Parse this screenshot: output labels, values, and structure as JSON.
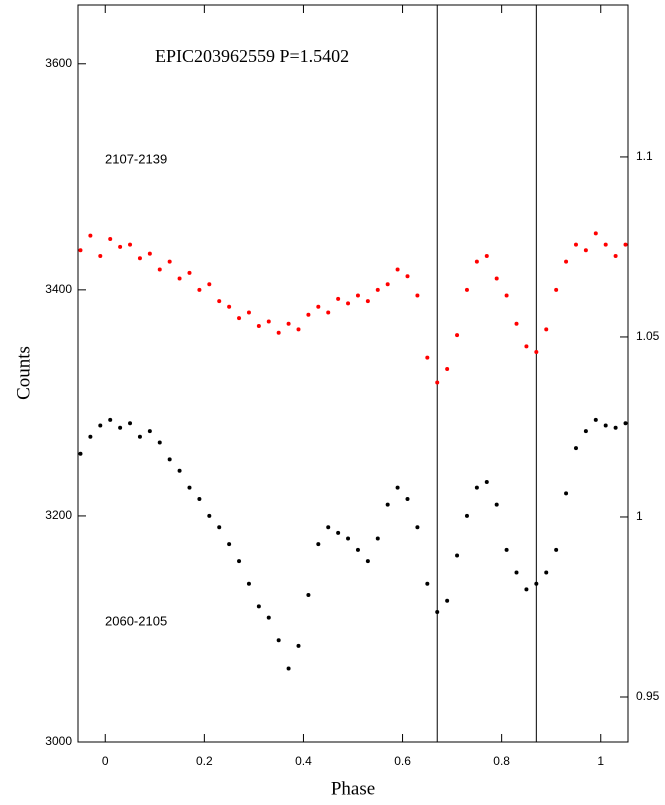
{
  "chart_data": {
    "type": "scatter",
    "title": "EPIC203962559  P=1.5402",
    "xlabel": "Phase",
    "ylabel": "Counts",
    "x": [
      -0.05,
      -0.03,
      -0.01,
      0.01,
      0.03,
      0.05,
      0.07,
      0.09,
      0.11,
      0.13,
      0.15,
      0.17,
      0.19,
      0.21,
      0.23,
      0.25,
      0.27,
      0.29,
      0.31,
      0.33,
      0.35,
      0.37,
      0.39,
      0.41,
      0.43,
      0.45,
      0.47,
      0.49,
      0.51,
      0.53,
      0.55,
      0.57,
      0.59,
      0.61,
      0.63,
      0.65,
      0.67,
      0.69,
      0.71,
      0.73,
      0.75,
      0.77,
      0.79,
      0.81,
      0.83,
      0.85,
      0.87,
      0.89,
      0.91,
      0.93,
      0.95,
      0.97,
      0.99,
      1.01,
      1.03,
      1.05
    ],
    "series": [
      {
        "name": "2107-2139",
        "color": "#ff0000",
        "values": [
          3435,
          3448,
          3430,
          3445,
          3438,
          3440,
          3428,
          3432,
          3418,
          3425,
          3410,
          3415,
          3400,
          3405,
          3390,
          3385,
          3375,
          3380,
          3368,
          3372,
          3362,
          3370,
          3365,
          3378,
          3385,
          3380,
          3392,
          3388,
          3395,
          3390,
          3400,
          3405,
          3418,
          3412,
          3395,
          3340,
          3318,
          3330,
          3360,
          3400,
          3425,
          3430,
          3410,
          3395,
          3370,
          3350,
          3345,
          3365,
          3400,
          3425,
          3440,
          3435,
          3450,
          3440,
          3430,
          3440
        ]
      },
      {
        "name": "2060-2105",
        "color": "#000000",
        "values": [
          3255,
          3270,
          3280,
          3285,
          3278,
          3282,
          3270,
          3275,
          3265,
          3250,
          3240,
          3225,
          3215,
          3200,
          3190,
          3175,
          3160,
          3140,
          3120,
          3110,
          3090,
          3065,
          3085,
          3130,
          3175,
          3190,
          3185,
          3180,
          3170,
          3160,
          3180,
          3210,
          3225,
          3215,
          3190,
          3140,
          3115,
          3125,
          3165,
          3200,
          3225,
          3230,
          3210,
          3170,
          3150,
          3135,
          3140,
          3150,
          3170,
          3220,
          3260,
          3275,
          3285,
          3280,
          3278,
          3282
        ]
      }
    ],
    "vlines": [
      0.67,
      0.87
    ],
    "xlim": [
      -0.055,
      1.055
    ],
    "xticks": [
      0,
      0.2,
      0.4,
      0.6,
      0.8,
      1
    ],
    "ylim": [
      3000,
      3652
    ],
    "yticks": [
      3000,
      3200,
      3400,
      3600
    ],
    "y2lim": [
      0.9375,
      1.1422
    ],
    "y2ticks": [
      0.95,
      1,
      1.05,
      1.1
    ]
  }
}
